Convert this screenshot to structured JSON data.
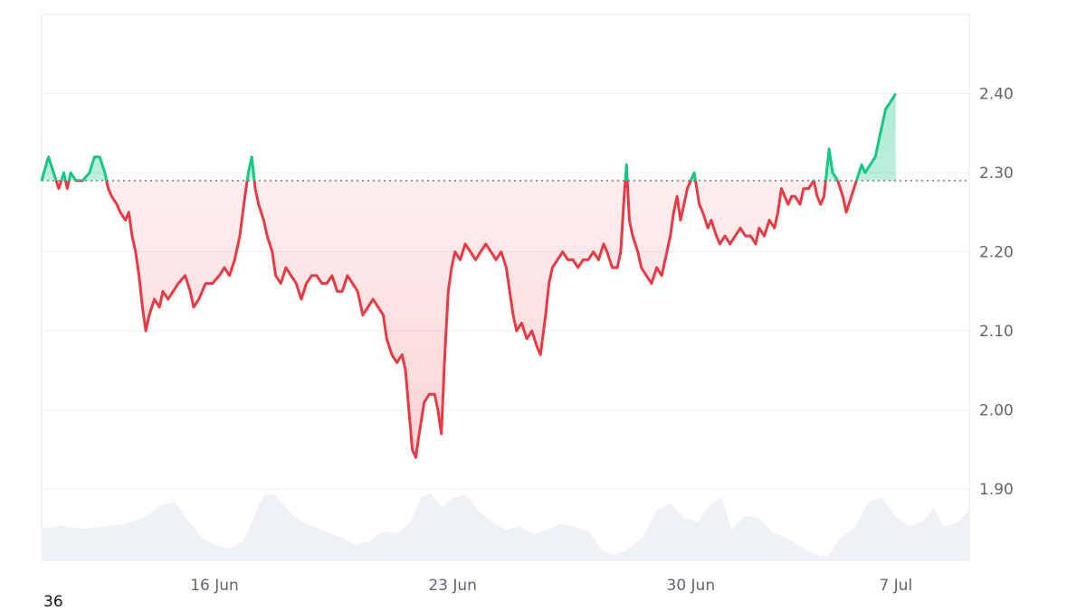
{
  "footer_label": "36",
  "chart_data": {
    "type": "area",
    "baseline_price": 2.29,
    "colors": {
      "above": "#16c784",
      "above_fill": "rgba(22,199,132,0.22)",
      "below": "#ea3943",
      "below_fill": "rgba(234,57,67,0.16)",
      "volume": "#eef1f5",
      "grid": "#eceff3",
      "baseline": "#777777"
    },
    "ylim": [
      1.81,
      2.5
    ],
    "yticks": [
      {
        "value": 2.4,
        "label": "2.40"
      },
      {
        "value": 2.3,
        "label": "2.30"
      },
      {
        "value": 2.2,
        "label": "2.20"
      },
      {
        "value": 2.1,
        "label": "2.10"
      },
      {
        "value": 2.0,
        "label": "2.00"
      },
      {
        "value": 1.9,
        "label": "1.90"
      }
    ],
    "xlim": [
      0,
      27.15
    ],
    "xticks": [
      {
        "day": 5.06,
        "label": "16 Jun"
      },
      {
        "day": 12.03,
        "label": "23 Jun"
      },
      {
        "day": 19.0,
        "label": "30 Jun"
      },
      {
        "day": 25.0,
        "label": "7 Jul"
      }
    ],
    "price": [
      [
        0.0,
        2.29
      ],
      [
        0.2,
        2.32
      ],
      [
        0.35,
        2.3
      ],
      [
        0.5,
        2.28
      ],
      [
        0.65,
        2.3
      ],
      [
        0.75,
        2.28
      ],
      [
        0.85,
        2.3
      ],
      [
        1.0,
        2.29
      ],
      [
        1.2,
        2.29
      ],
      [
        1.4,
        2.3
      ],
      [
        1.55,
        2.32
      ],
      [
        1.7,
        2.32
      ],
      [
        1.85,
        2.3
      ],
      [
        1.95,
        2.28
      ],
      [
        2.05,
        2.27
      ],
      [
        2.2,
        2.26
      ],
      [
        2.3,
        2.25
      ],
      [
        2.45,
        2.24
      ],
      [
        2.55,
        2.25
      ],
      [
        2.65,
        2.22
      ],
      [
        2.75,
        2.2
      ],
      [
        2.85,
        2.17
      ],
      [
        2.95,
        2.13
      ],
      [
        3.05,
        2.1
      ],
      [
        3.15,
        2.12
      ],
      [
        3.3,
        2.14
      ],
      [
        3.45,
        2.13
      ],
      [
        3.55,
        2.15
      ],
      [
        3.7,
        2.14
      ],
      [
        3.85,
        2.15
      ],
      [
        4.0,
        2.16
      ],
      [
        4.2,
        2.17
      ],
      [
        4.35,
        2.15
      ],
      [
        4.45,
        2.13
      ],
      [
        4.6,
        2.14
      ],
      [
        4.8,
        2.16
      ],
      [
        5.0,
        2.16
      ],
      [
        5.2,
        2.17
      ],
      [
        5.35,
        2.18
      ],
      [
        5.5,
        2.17
      ],
      [
        5.65,
        2.19
      ],
      [
        5.8,
        2.22
      ],
      [
        5.95,
        2.27
      ],
      [
        6.05,
        2.3
      ],
      [
        6.15,
        2.32
      ],
      [
        6.25,
        2.28
      ],
      [
        6.35,
        2.26
      ],
      [
        6.5,
        2.24
      ],
      [
        6.6,
        2.22
      ],
      [
        6.75,
        2.2
      ],
      [
        6.85,
        2.17
      ],
      [
        7.0,
        2.16
      ],
      [
        7.15,
        2.18
      ],
      [
        7.3,
        2.17
      ],
      [
        7.45,
        2.16
      ],
      [
        7.6,
        2.14
      ],
      [
        7.75,
        2.16
      ],
      [
        7.9,
        2.17
      ],
      [
        8.05,
        2.17
      ],
      [
        8.2,
        2.16
      ],
      [
        8.35,
        2.16
      ],
      [
        8.5,
        2.17
      ],
      [
        8.65,
        2.15
      ],
      [
        8.8,
        2.15
      ],
      [
        8.95,
        2.17
      ],
      [
        9.1,
        2.16
      ],
      [
        9.25,
        2.15
      ],
      [
        9.4,
        2.12
      ],
      [
        9.55,
        2.13
      ],
      [
        9.7,
        2.14
      ],
      [
        9.85,
        2.13
      ],
      [
        10.0,
        2.12
      ],
      [
        10.1,
        2.09
      ],
      [
        10.25,
        2.07
      ],
      [
        10.4,
        2.06
      ],
      [
        10.55,
        2.07
      ],
      [
        10.65,
        2.05
      ],
      [
        10.75,
        2.0
      ],
      [
        10.85,
        1.95
      ],
      [
        10.95,
        1.94
      ],
      [
        11.05,
        1.97
      ],
      [
        11.2,
        2.01
      ],
      [
        11.35,
        2.02
      ],
      [
        11.5,
        2.02
      ],
      [
        11.6,
        2.0
      ],
      [
        11.7,
        1.97
      ],
      [
        11.8,
        2.07
      ],
      [
        11.9,
        2.15
      ],
      [
        12.0,
        2.18
      ],
      [
        12.1,
        2.2
      ],
      [
        12.25,
        2.19
      ],
      [
        12.4,
        2.21
      ],
      [
        12.55,
        2.2
      ],
      [
        12.7,
        2.19
      ],
      [
        12.85,
        2.2
      ],
      [
        13.0,
        2.21
      ],
      [
        13.15,
        2.2
      ],
      [
        13.3,
        2.19
      ],
      [
        13.45,
        2.2
      ],
      [
        13.6,
        2.18
      ],
      [
        13.7,
        2.15
      ],
      [
        13.8,
        2.12
      ],
      [
        13.9,
        2.1
      ],
      [
        14.05,
        2.11
      ],
      [
        14.2,
        2.09
      ],
      [
        14.35,
        2.1
      ],
      [
        14.5,
        2.08
      ],
      [
        14.6,
        2.07
      ],
      [
        14.75,
        2.12
      ],
      [
        14.85,
        2.16
      ],
      [
        14.95,
        2.18
      ],
      [
        15.1,
        2.19
      ],
      [
        15.25,
        2.2
      ],
      [
        15.4,
        2.19
      ],
      [
        15.55,
        2.19
      ],
      [
        15.7,
        2.18
      ],
      [
        15.85,
        2.19
      ],
      [
        16.0,
        2.19
      ],
      [
        16.15,
        2.2
      ],
      [
        16.3,
        2.19
      ],
      [
        16.45,
        2.21
      ],
      [
        16.55,
        2.2
      ],
      [
        16.7,
        2.18
      ],
      [
        16.85,
        2.18
      ],
      [
        16.95,
        2.2
      ],
      [
        17.05,
        2.27
      ],
      [
        17.12,
        2.31
      ],
      [
        17.2,
        2.24
      ],
      [
        17.3,
        2.22
      ],
      [
        17.45,
        2.2
      ],
      [
        17.55,
        2.18
      ],
      [
        17.7,
        2.17
      ],
      [
        17.85,
        2.16
      ],
      [
        18.0,
        2.18
      ],
      [
        18.15,
        2.17
      ],
      [
        18.3,
        2.2
      ],
      [
        18.4,
        2.22
      ],
      [
        18.5,
        2.25
      ],
      [
        18.6,
        2.27
      ],
      [
        18.7,
        2.24
      ],
      [
        18.8,
        2.26
      ],
      [
        18.9,
        2.28
      ],
      [
        19.0,
        2.29
      ],
      [
        19.1,
        2.3
      ],
      [
        19.25,
        2.26
      ],
      [
        19.35,
        2.25
      ],
      [
        19.5,
        2.23
      ],
      [
        19.6,
        2.24
      ],
      [
        19.75,
        2.22
      ],
      [
        19.85,
        2.21
      ],
      [
        20.0,
        2.22
      ],
      [
        20.15,
        2.21
      ],
      [
        20.3,
        2.22
      ],
      [
        20.45,
        2.23
      ],
      [
        20.6,
        2.22
      ],
      [
        20.75,
        2.22
      ],
      [
        20.9,
        2.21
      ],
      [
        21.0,
        2.23
      ],
      [
        21.15,
        2.22
      ],
      [
        21.3,
        2.24
      ],
      [
        21.45,
        2.23
      ],
      [
        21.55,
        2.25
      ],
      [
        21.65,
        2.28
      ],
      [
        21.75,
        2.27
      ],
      [
        21.85,
        2.26
      ],
      [
        21.95,
        2.27
      ],
      [
        22.05,
        2.27
      ],
      [
        22.2,
        2.26
      ],
      [
        22.3,
        2.28
      ],
      [
        22.45,
        2.28
      ],
      [
        22.6,
        2.29
      ],
      [
        22.7,
        2.27
      ],
      [
        22.8,
        2.26
      ],
      [
        22.9,
        2.27
      ],
      [
        23.05,
        2.33
      ],
      [
        23.15,
        2.3
      ],
      [
        23.3,
        2.29
      ],
      [
        23.45,
        2.27
      ],
      [
        23.55,
        2.25
      ],
      [
        23.7,
        2.27
      ],
      [
        23.85,
        2.29
      ],
      [
        24.0,
        2.31
      ],
      [
        24.1,
        2.3
      ],
      [
        24.25,
        2.31
      ],
      [
        24.4,
        2.32
      ],
      [
        24.55,
        2.35
      ],
      [
        24.7,
        2.38
      ],
      [
        24.85,
        2.39
      ],
      [
        25.0,
        2.4
      ]
    ],
    "volume_level": [
      [
        0.0,
        0.42
      ],
      [
        0.6,
        0.45
      ],
      [
        1.2,
        0.41
      ],
      [
        1.8,
        0.44
      ],
      [
        2.4,
        0.47
      ],
      [
        3.0,
        0.56
      ],
      [
        3.5,
        0.72
      ],
      [
        3.9,
        0.76
      ],
      [
        4.3,
        0.51
      ],
      [
        4.7,
        0.29
      ],
      [
        5.1,
        0.2
      ],
      [
        5.5,
        0.15
      ],
      [
        5.9,
        0.25
      ],
      [
        6.2,
        0.55
      ],
      [
        6.5,
        0.84
      ],
      [
        6.8,
        0.86
      ],
      [
        7.2,
        0.66
      ],
      [
        7.6,
        0.5
      ],
      [
        8.0,
        0.43
      ],
      [
        8.4,
        0.36
      ],
      [
        8.8,
        0.29
      ],
      [
        9.2,
        0.2
      ],
      [
        9.6,
        0.25
      ],
      [
        10.0,
        0.38
      ],
      [
        10.4,
        0.35
      ],
      [
        10.8,
        0.5
      ],
      [
        11.1,
        0.82
      ],
      [
        11.4,
        0.88
      ],
      [
        11.7,
        0.7
      ],
      [
        12.0,
        0.8
      ],
      [
        12.4,
        0.86
      ],
      [
        12.8,
        0.64
      ],
      [
        13.2,
        0.49
      ],
      [
        13.6,
        0.4
      ],
      [
        14.0,
        0.45
      ],
      [
        14.4,
        0.34
      ],
      [
        14.8,
        0.4
      ],
      [
        15.2,
        0.48
      ],
      [
        15.6,
        0.44
      ],
      [
        16.0,
        0.37
      ],
      [
        16.4,
        0.13
      ],
      [
        16.8,
        0.07
      ],
      [
        17.2,
        0.16
      ],
      [
        17.6,
        0.3
      ],
      [
        18.0,
        0.65
      ],
      [
        18.4,
        0.74
      ],
      [
        18.8,
        0.55
      ],
      [
        19.2,
        0.5
      ],
      [
        19.6,
        0.74
      ],
      [
        19.9,
        0.82
      ],
      [
        20.2,
        0.4
      ],
      [
        20.6,
        0.58
      ],
      [
        21.0,
        0.55
      ],
      [
        21.4,
        0.36
      ],
      [
        21.8,
        0.29
      ],
      [
        22.2,
        0.18
      ],
      [
        22.6,
        0.08
      ],
      [
        23.0,
        0.05
      ],
      [
        23.4,
        0.3
      ],
      [
        23.8,
        0.43
      ],
      [
        24.2,
        0.76
      ],
      [
        24.6,
        0.82
      ],
      [
        25.0,
        0.56
      ],
      [
        25.4,
        0.44
      ],
      [
        25.8,
        0.51
      ],
      [
        26.1,
        0.68
      ],
      [
        26.4,
        0.44
      ],
      [
        26.8,
        0.49
      ],
      [
        27.15,
        0.66
      ]
    ]
  }
}
